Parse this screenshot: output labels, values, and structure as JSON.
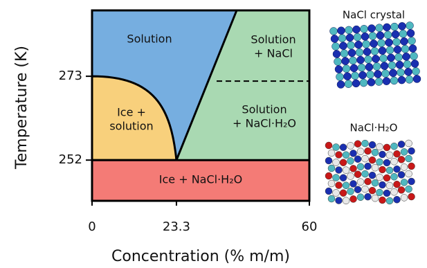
{
  "chart_data": {
    "type": "phase-diagram",
    "x_label": "Concentration (% m/m)",
    "y_label": "Temperature (K)",
    "xlim": [
      0,
      60
    ],
    "xticks": [
      0,
      23.3,
      60
    ],
    "ylim": [
      241.8,
      289.5
    ],
    "yticks": [
      252,
      273
    ],
    "regions": [
      "Solution",
      "Solution\n+ NaCl",
      "Ice +\nsolution",
      "Solution\n+ NaCl·H₂O",
      "Ice + NaCl·H₂O"
    ],
    "images": [
      "NaCl crystal",
      "NaCl·H₂O"
    ]
  }
}
